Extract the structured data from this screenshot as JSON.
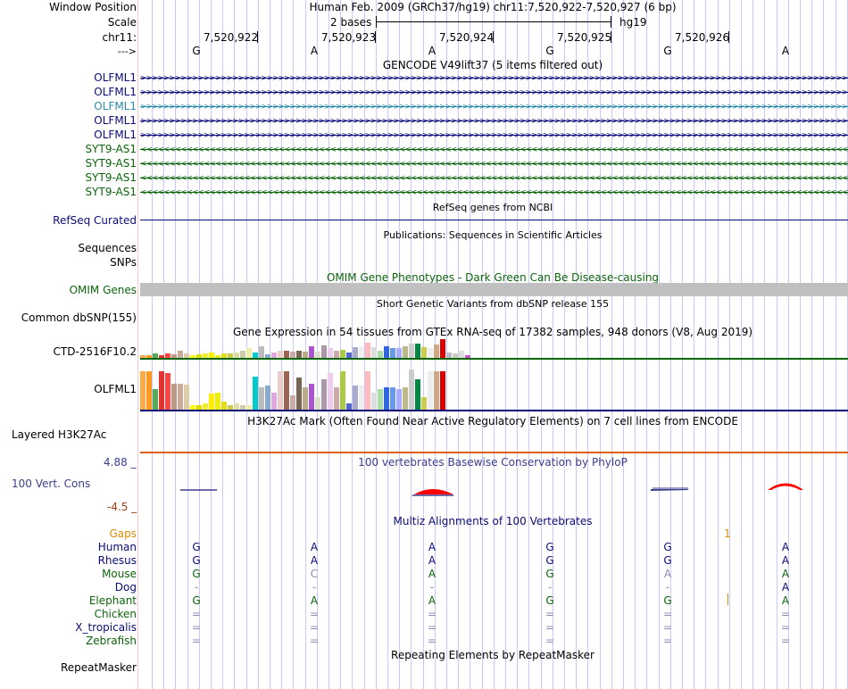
{
  "colors": {
    "grid": "#c8c8ff",
    "separator": "#fcc8c8",
    "gencode_blue": "#0c0c78",
    "gencode_cyan": "#2c8aa8",
    "gencode_green": "#0c640c",
    "omim_green": "#0c640c",
    "conservation_blue": "#3c3c8c",
    "conservation_red": "#ff0000",
    "gap_orange": "#dc8c00",
    "layered_orange": "#e06020",
    "dark_navy": "#0c0c78"
  },
  "header": {
    "window_position_label": "Window Position",
    "scale_label": "Scale",
    "chrom_label": "chr11:",
    "strand_label": "--->",
    "window_title": "Human Feb. 2009 (GRCh37/hg19)   chr11:7,520,922-7,520,927 (6 bp)",
    "scale_text": "2 bases",
    "assembly": "hg19",
    "coordinates": [
      "7,520,922",
      "7,520,923",
      "7,520,924",
      "7,520,925",
      "7,520,926"
    ],
    "bases": [
      "G",
      "A",
      "A",
      "G",
      "G",
      "A"
    ]
  },
  "gencode": {
    "title": "GENCODE V49lift37 (5 items filtered out)",
    "tracks": [
      {
        "name": "OLFML1",
        "color": "#0c0c78",
        "direction": ">"
      },
      {
        "name": "OLFML1",
        "color": "#0c0c78",
        "direction": ">"
      },
      {
        "name": "OLFML1",
        "color": "#2c8aa8",
        "direction": ">"
      },
      {
        "name": "OLFML1",
        "color": "#0c0c78",
        "direction": ">"
      },
      {
        "name": "OLFML1",
        "color": "#0c0c78",
        "direction": ">"
      },
      {
        "name": "SYT9-AS1",
        "color": "#0c640c",
        "direction": "<"
      },
      {
        "name": "SYT9-AS1",
        "color": "#0c640c",
        "direction": "<"
      },
      {
        "name": "SYT9-AS1",
        "color": "#0c640c",
        "direction": "<"
      },
      {
        "name": "SYT9-AS1",
        "color": "#0c640c",
        "direction": "<"
      }
    ]
  },
  "refseq": {
    "title": "RefSeq genes from NCBI",
    "label": "RefSeq Curated"
  },
  "publications": {
    "title": "Publications: Sequences in Scientific Articles",
    "label": "Sequences"
  },
  "snps": {
    "label": "SNPs"
  },
  "omim": {
    "title": "OMIM Gene Phenotypes - Dark Green Can Be Disease-causing",
    "label": "OMIM Genes"
  },
  "dbsnp": {
    "title": "Short Genetic Variants from dbSNP release 155",
    "label": "Common dbSNP(155)"
  },
  "gtex": {
    "title": "Gene Expression in 54 tissues from GTEx RNA-seq of 17382 samples, 948 donors (V8, Aug 2019)",
    "label_1": "CTD-2516F10.2",
    "label_2": "OLFML1",
    "colors": [
      "#ffaa44",
      "#ff9922",
      "#55aa55",
      "#dd3333",
      "#ff4444",
      "#bb9988",
      "#ccaa99",
      "#ddccaa",
      "#ffff00",
      "#dddd00",
      "#eeee22",
      "#ffee00",
      "#eeee00",
      "#dddd22",
      "#cccc44",
      "#ddddaa",
      "#ccccaa",
      "#eeeeaa",
      "#00cccc",
      "#bbbbbb",
      "#88aacc",
      "#ddaadd",
      "#eecccc",
      "#996655",
      "#ccaaaa",
      "#776655",
      "#bbaa88",
      "#aa55cc",
      "#ddddcc",
      "#aa99aa",
      "#eeccee",
      "#ccaaaa",
      "#aacc44",
      "#5566cc",
      "#aaaacc",
      "#eeeeee",
      "#ffbbbb",
      "#dddddd",
      "#aaddaa",
      "#3366dd",
      "#6699ee",
      "#aaaaff",
      "#bbbb88",
      "#cccccc",
      "#008844",
      "#cccc55",
      "#eeeeee",
      "#ccaa88",
      "#dd0000",
      "#bbbbcc",
      "#ccccbb",
      "#dddddd",
      "#cc55cc",
      "#aaaaaa"
    ],
    "values_1": [
      0.15,
      0.15,
      0.25,
      0.15,
      0.25,
      0.2,
      0.4,
      0.25,
      0.15,
      0.2,
      0.25,
      0.3,
      0.15,
      0.25,
      0.25,
      0.3,
      0.4,
      0.5,
      0.3,
      0.6,
      0.2,
      0.3,
      0.4,
      0.4,
      0.35,
      0.4,
      0.35,
      0.6,
      0.35,
      0.65,
      0.5,
      0.4,
      0.45,
      0.3,
      0.55,
      0.55,
      0.8,
      0.55,
      0.4,
      0.6,
      0.5,
      0.5,
      0.6,
      0.75,
      0.75,
      0.55,
      0.5,
      0.7,
      1.0,
      0.3,
      0.25,
      0.4,
      0.15,
      0.0
    ],
    "values_2": [
      0.95,
      0.95,
      0.5,
      0.95,
      0.9,
      0.65,
      0.65,
      0.62,
      0.12,
      0.12,
      0.15,
      0.4,
      0.42,
      0.2,
      0.12,
      0.15,
      0.12,
      0.12,
      0.82,
      0.55,
      0.6,
      0.42,
      0.95,
      0.95,
      0.35,
      0.8,
      0.55,
      0.65,
      0.3,
      0.75,
      0.9,
      0.55,
      0.95,
      0.15,
      0.6,
      0.6,
      0.95,
      0.42,
      0.5,
      0.55,
      0.55,
      0.52,
      0.55,
      1.0,
      0.75,
      0.3,
      0.95,
      0.95,
      0.95,
      0.0,
      0.0,
      0.0,
      0.0,
      0.0
    ]
  },
  "h3k27ac": {
    "title": "H3K27Ac Mark (Often Found Near Active Regulatory Elements) on 7 cell lines from ENCODE",
    "label": "Layered H3K27Ac"
  },
  "phylop": {
    "title": "100 vertebrates Basewise Conservation by PhyloP",
    "label": "100 Vert. Cons",
    "max": "4.88 _",
    "min": "-4.5 _"
  },
  "multiz": {
    "title": "Multiz Alignments of 100 Vertebrates",
    "gaps_label": "Gaps",
    "gap_value": "1",
    "species": [
      {
        "name": "Human",
        "bases": [
          "G",
          "A",
          "A",
          "G",
          "G",
          "A"
        ],
        "color": "#0c0c78"
      },
      {
        "name": "Rhesus",
        "bases": [
          "G",
          "A",
          "A",
          "G",
          "G",
          "A"
        ],
        "color": "#0c0c78"
      },
      {
        "name": "Mouse",
        "bases": [
          "G",
          "C",
          "A",
          "G",
          "A",
          "A"
        ],
        "color": "#0c640c"
      },
      {
        "name": "Dog",
        "bases": [
          "-",
          "-",
          "-",
          "-",
          "-",
          "A"
        ],
        "color": "#0c0c78"
      },
      {
        "name": "Elephant",
        "bases": [
          "G",
          "A",
          "A",
          "G",
          "G",
          "A"
        ],
        "color": "#0c640c"
      },
      {
        "name": "Chicken",
        "bases": [
          "=",
          "=",
          "=",
          "=",
          "=",
          "="
        ],
        "color": "#0c640c"
      },
      {
        "name": "X_tropicalis",
        "bases": [
          "=",
          "=",
          "=",
          "=",
          "=",
          "="
        ],
        "color": "#0c0c78"
      },
      {
        "name": "Zebrafish",
        "bases": [
          "=",
          "=",
          "=",
          "=",
          "=",
          "="
        ],
        "color": "#0c640c"
      }
    ]
  },
  "repeatmasker": {
    "title": "Repeating Elements by RepeatMasker",
    "label": "RepeatMasker"
  }
}
